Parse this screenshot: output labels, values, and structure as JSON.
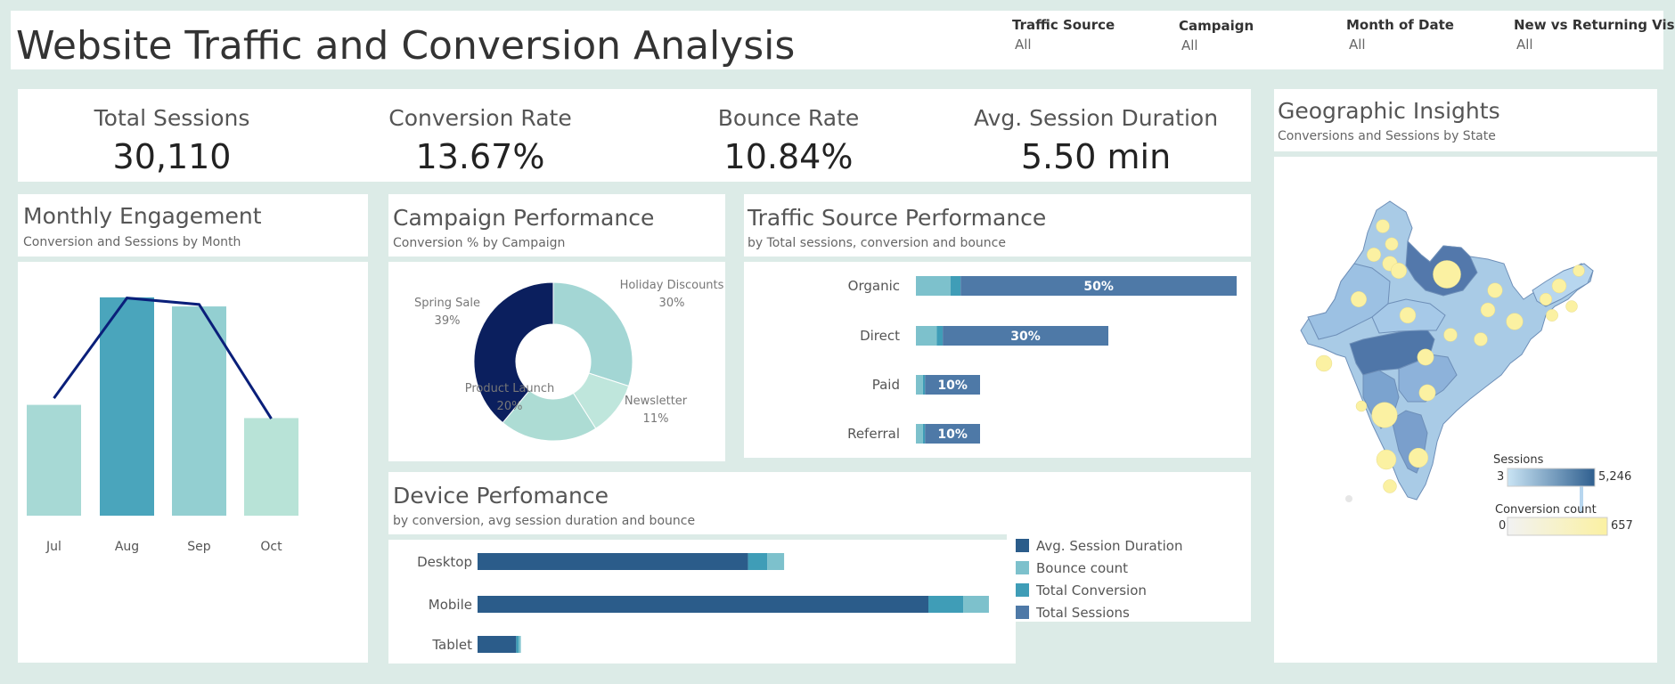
{
  "header": {
    "title": "Website Traffic and Conversion Analysis",
    "filters": [
      {
        "label": "Traffic Source",
        "value": "All"
      },
      {
        "label": "Campaign",
        "value": "All"
      },
      {
        "label": "Month of Date",
        "value": "All"
      },
      {
        "label": "New vs Returning Vis..",
        "value": "All"
      }
    ]
  },
  "kpis": [
    {
      "label": "Total Sessions",
      "value": "30,110"
    },
    {
      "label": "Conversion Rate",
      "value": "13.67%"
    },
    {
      "label": "Bounce Rate",
      "value": "10.84%"
    },
    {
      "label": "Avg. Session Duration",
      "value": "5.50 min"
    }
  ],
  "panels": {
    "monthly": {
      "title": "Monthly Engagement",
      "subtitle": "Conversion and Sessions by Month"
    },
    "campaign": {
      "title": "Campaign Performance",
      "subtitle": "Conversion % by Campaign"
    },
    "traffic": {
      "title": "Traffic Source Performance",
      "subtitle": "by Total sessions, conversion and bounce"
    },
    "device": {
      "title": "Device Perfomance",
      "subtitle": "by conversion, avg session duration and bounce"
    },
    "geo": {
      "title": "Geographic Insights",
      "subtitle": "Conversions and Sessions by  State"
    }
  },
  "colors": {
    "navy": "#0a1f7a",
    "bar_dark": "#4aa5bc",
    "bar_mid": "#93cfd1",
    "bar_light": "#b8e3d7",
    "teal_light": "#7dc1cc",
    "steel": "#4e79a7",
    "steel_dark": "#2b5c8a",
    "teal": "#3f9db7",
    "map_low": "#c9e4f4",
    "map_high": "#2f5f8f",
    "bubble": "#fbf1a2"
  },
  "chart_data": [
    {
      "id": "monthly",
      "type": "bar",
      "categories": [
        "Jul",
        "Aug",
        "Sep",
        "Oct"
      ],
      "series": [
        {
          "name": "Sessions",
          "values": [
            6700,
            13200,
            12650,
            5900
          ]
        },
        {
          "name": "Conversion",
          "values": [
            1090,
            2020,
            1960,
            900
          ]
        }
      ],
      "title": "Monthly Engagement",
      "subtitle": "Conversion and Sessions by Month"
    },
    {
      "id": "campaign",
      "type": "pie",
      "labels": [
        "Holiday Discounts",
        "Newsletter",
        "Product Launch",
        "Spring Sale"
      ],
      "pct_labels": [
        "30%",
        "11%",
        "20%",
        "39%"
      ],
      "values": [
        30,
        11,
        20,
        39
      ],
      "colors": [
        "#a3d6d4",
        "#bfe6dc",
        "#addcd4",
        "#0b1f5e"
      ],
      "title": "Campaign Performance"
    },
    {
      "id": "traffic",
      "type": "bar",
      "orientation": "horizontal",
      "categories": [
        "Organic",
        "Direct",
        "Paid",
        "Referral"
      ],
      "series": [
        {
          "name": "Bounce",
          "values": [
            1630,
            980,
            330,
            330
          ]
        },
        {
          "name": "Conversion",
          "values": [
            470,
            280,
            100,
            100
          ]
        },
        {
          "name": "Total Sessions",
          "values": [
            15055,
            9033,
            3011,
            3011
          ]
        }
      ],
      "data_labels": [
        "50%",
        "30%",
        "10%",
        "10%"
      ],
      "title": "Traffic Source Performance"
    },
    {
      "id": "device",
      "type": "bar",
      "orientation": "horizontal",
      "stacked": true,
      "categories": [
        "Desktop",
        "Mobile",
        "Tablet"
      ],
      "series": [
        {
          "name": "Avg. Session Duration",
          "values": [
            10500,
            17500,
            1500
          ]
        },
        {
          "name": "Total Conversion",
          "values": [
            750,
            1350,
            90
          ]
        },
        {
          "name": "Bounce count",
          "values": [
            650,
            1000,
            90
          ]
        }
      ],
      "legend": [
        "Avg. Session Duration",
        "Bounce count",
        "Total Conversion",
        "Total Sessions"
      ],
      "title": "Device Perfomance"
    },
    {
      "id": "geo",
      "type": "map",
      "legend_sessions": {
        "title": "Sessions",
        "min": "3",
        "max": "5,246"
      },
      "legend_conversions": {
        "title": "Conversion count",
        "min": "0",
        "max": "657"
      },
      "bubbles": [
        {
          "state": "Jammu and Kashmir",
          "conversions": 60
        },
        {
          "state": "Himachal Pradesh",
          "conversions": 50
        },
        {
          "state": "Punjab",
          "conversions": 70
        },
        {
          "state": "Haryana",
          "conversions": 90
        },
        {
          "state": "Delhi",
          "conversions": 110
        },
        {
          "state": "Uttar Pradesh",
          "conversions": 657
        },
        {
          "state": "Rajasthan",
          "conversions": 110
        },
        {
          "state": "Gujarat",
          "conversions": 120
        },
        {
          "state": "Madhya Pradesh",
          "conversions": 120
        },
        {
          "state": "Bihar",
          "conversions": 90
        },
        {
          "state": "Jharkhand",
          "conversions": 80
        },
        {
          "state": "West Bengal",
          "conversions": 140
        },
        {
          "state": "Odisha",
          "conversions": 60
        },
        {
          "state": "Chhattisgarh",
          "conversions": 60
        },
        {
          "state": "Maharashtra",
          "conversions": 520
        },
        {
          "state": "Telangana",
          "conversions": 130
        },
        {
          "state": "Andhra Pradesh",
          "conversions": 130
        },
        {
          "state": "Karnataka",
          "conversions": 240
        },
        {
          "state": "Tamil Nadu",
          "conversions": 230
        },
        {
          "state": "Kerala",
          "conversions": 60
        },
        {
          "state": "Assam",
          "conversions": 80
        },
        {
          "state": "Meghalaya",
          "conversions": 40
        },
        {
          "state": "Tripura",
          "conversions": 35
        },
        {
          "state": "Arunachal Pradesh",
          "conversions": 30
        },
        {
          "state": "Manipur",
          "conversions": 30
        },
        {
          "state": "Goa",
          "conversions": 20
        }
      ]
    }
  ]
}
